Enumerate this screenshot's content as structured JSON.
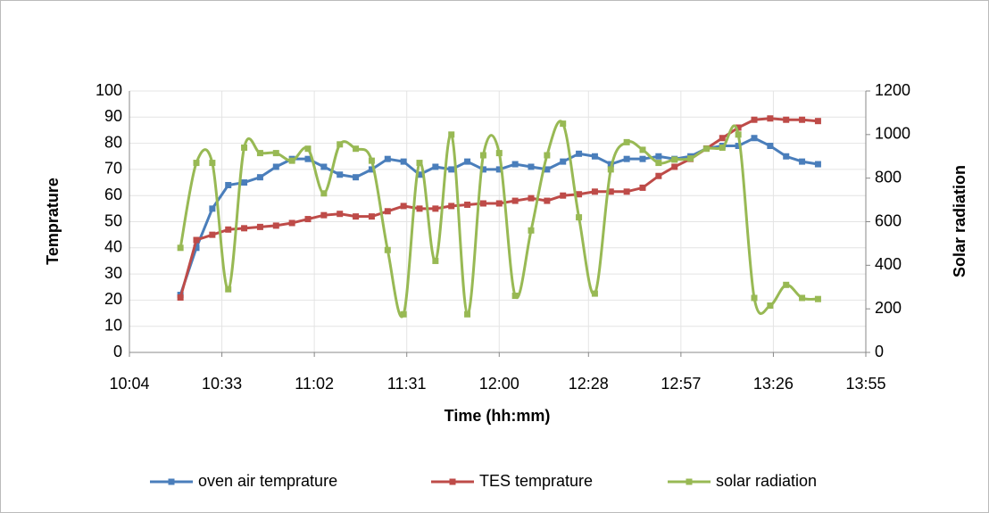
{
  "chart_data": {
    "type": "line",
    "x_label": "Time (hh:mm)",
    "y_label": "Temprature",
    "y2_label": "Solar radiation",
    "x": [
      "10:20",
      "10:25",
      "10:30",
      "10:35",
      "10:40",
      "10:45",
      "10:50",
      "10:55",
      "11:00",
      "11:05",
      "11:10",
      "11:15",
      "11:20",
      "11:25",
      "11:30",
      "11:35",
      "11:40",
      "11:45",
      "11:50",
      "11:55",
      "12:00",
      "12:05",
      "12:10",
      "12:15",
      "12:20",
      "12:25",
      "12:30",
      "12:35",
      "12:40",
      "12:45",
      "12:50",
      "12:55",
      "13:00",
      "13:05",
      "13:10",
      "13:15",
      "13:20",
      "13:25",
      "13:30",
      "13:35",
      "13:40"
    ],
    "series": [
      {
        "name": "oven air temprature",
        "color": "#4a7ebb",
        "axis": "y",
        "values": [
          22,
          40,
          55,
          64,
          65,
          67,
          71,
          74,
          74,
          71,
          68,
          67,
          70,
          74,
          73,
          68,
          71,
          70,
          73,
          70,
          70,
          72,
          71,
          70,
          73,
          76,
          75,
          72,
          74,
          74,
          75,
          74,
          75,
          78,
          79,
          79,
          82,
          79,
          75,
          73,
          72
        ]
      },
      {
        "name": "TES temprature",
        "color": "#be4b48",
        "axis": "y",
        "values": [
          21,
          43,
          45,
          47,
          47.5,
          48,
          48.5,
          49.5,
          51,
          52.5,
          53,
          52,
          52,
          54,
          56,
          55,
          55,
          56,
          56.5,
          57,
          57,
          58,
          59,
          58,
          60,
          60.5,
          61.5,
          61.5,
          61.5,
          63,
          67.5,
          71,
          74,
          78,
          82,
          86,
          89,
          89.5,
          89,
          89,
          88.5
        ]
      },
      {
        "name": "solar radiation",
        "color": "#98b954",
        "axis": "y2",
        "smooth": true,
        "values": [
          480,
          870,
          870,
          290,
          940,
          915,
          915,
          880,
          935,
          730,
          955,
          935,
          880,
          470,
          175,
          870,
          420,
          1000,
          175,
          905,
          915,
          260,
          560,
          905,
          1050,
          620,
          270,
          840,
          965,
          930,
          870,
          885,
          890,
          935,
          940,
          1000,
          250,
          215,
          310,
          250,
          245
        ]
      }
    ],
    "xlim": [
      "10:04",
      "13:55"
    ],
    "xticks": [
      "10:04",
      "10:33",
      "11:02",
      "11:31",
      "12:00",
      "12:28",
      "12:57",
      "13:26",
      "13:55"
    ],
    "ylim": [
      0,
      100
    ],
    "yticks": [
      0,
      10,
      20,
      30,
      40,
      50,
      60,
      70,
      80,
      90,
      100
    ],
    "y2lim": [
      0,
      1200
    ],
    "y2ticks": [
      0,
      200,
      400,
      600,
      800,
      1000,
      1200
    ],
    "grid": true,
    "legend": "bottom"
  }
}
